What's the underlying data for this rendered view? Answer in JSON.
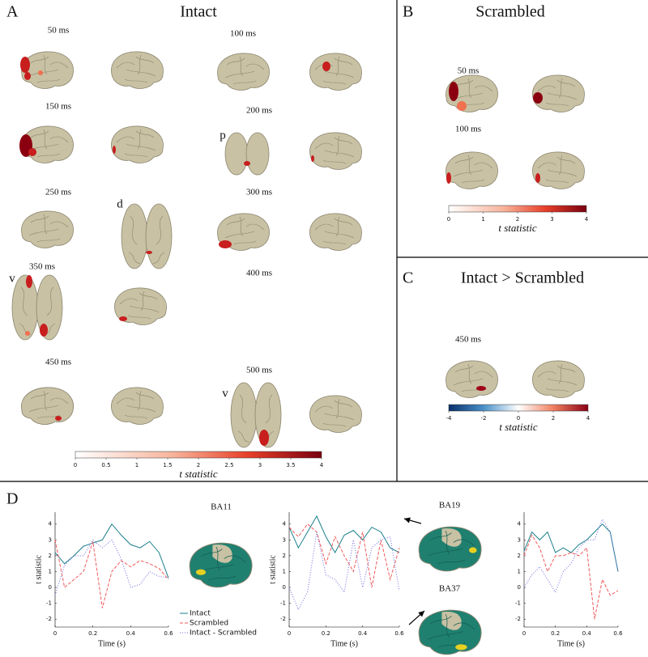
{
  "panels": {
    "A": {
      "letter": "A",
      "title": "Intact",
      "times": [
        "50 ms",
        "100 ms",
        "150 ms",
        "200 ms",
        "250 ms",
        "300 ms",
        "350 ms",
        "400 ms",
        "450 ms",
        "500 ms"
      ],
      "views": [
        "p",
        "d",
        "v",
        "v"
      ],
      "colorbar": {
        "label": "t statistic",
        "lim": [
          0,
          4
        ],
        "ticks": [
          0,
          0.5,
          1,
          1.5,
          2,
          2.5,
          3,
          3.5,
          4
        ]
      }
    },
    "B": {
      "letter": "B",
      "title": "Scrambled",
      "times": [
        "50 ms",
        "100 ms"
      ],
      "colorbar": {
        "label": "t statistic",
        "lim": [
          0,
          4
        ],
        "ticks": [
          0,
          1,
          2,
          3,
          4
        ]
      }
    },
    "C": {
      "letter": "C",
      "title": "Intact > Scrambled",
      "times": [
        "450 ms"
      ],
      "colorbar": {
        "label": "t statistic",
        "lim": [
          -4,
          4
        ],
        "ticks": [
          -4,
          -2,
          0,
          2,
          4
        ]
      }
    },
    "D": {
      "letter": "D",
      "regions": [
        "BA11",
        "BA19",
        "BA37"
      ]
    }
  },
  "chart_data": [
    {
      "type": "line",
      "xlabel": "Time (s)",
      "ylabel": "t statistic",
      "x": [
        0,
        0.05,
        0.1,
        0.15,
        0.2,
        0.25,
        0.3,
        0.35,
        0.4,
        0.45,
        0.5,
        0.55,
        0.6
      ],
      "xlim": [
        0,
        0.6
      ],
      "ylim": [
        -2.5,
        4.75
      ],
      "xticks": [
        0,
        0.2,
        0.4,
        0.6
      ],
      "yticks": [
        -2,
        -1,
        0,
        1,
        2,
        3,
        4
      ],
      "series": [
        {
          "name": "Intact",
          "color": "#1a7f8c",
          "dash": "none",
          "values": [
            2.2,
            1.5,
            2.0,
            2.6,
            2.8,
            3.0,
            4.0,
            3.3,
            2.7,
            2.5,
            2.9,
            2.2,
            0.6
          ]
        },
        {
          "name": "Scrambled",
          "color": "#f05a5a",
          "dash": "4 2",
          "values": [
            3.0,
            0.0,
            0.5,
            1.0,
            2.9,
            -1.3,
            1.0,
            1.7,
            1.3,
            1.7,
            1.5,
            1.2,
            0.5
          ]
        },
        {
          "name": "Intact - Scrambled",
          "color": "#6a6ae0",
          "dash": "1 2",
          "values": [
            -0.5,
            1.4,
            2.0,
            2.0,
            3.0,
            2.5,
            3.0,
            1.8,
            0.0,
            0.2,
            1.0,
            0.7,
            0.6
          ]
        }
      ]
    },
    {
      "type": "line",
      "xlabel": "Time (s)",
      "ylabel": "t statistic",
      "x": [
        0,
        0.05,
        0.1,
        0.15,
        0.2,
        0.25,
        0.3,
        0.35,
        0.4,
        0.45,
        0.5,
        0.55,
        0.6
      ],
      "xlim": [
        0,
        0.6
      ],
      "ylim": [
        -2.5,
        4.75
      ],
      "xticks": [
        0,
        0.2,
        0.4,
        0.6
      ],
      "yticks": [
        -2,
        -1,
        0,
        1,
        2,
        3,
        4
      ],
      "series": [
        {
          "color": "#1a7f8c",
          "dash": "none",
          "values": [
            3.8,
            2.5,
            3.5,
            4.5,
            3.2,
            2.2,
            3.3,
            3.6,
            3.0,
            3.8,
            3.5,
            2.5,
            2.2
          ]
        },
        {
          "color": "#f05a5a",
          "dash": "4 2",
          "values": [
            3.8,
            3.2,
            4.0,
            3.5,
            1.5,
            3.2,
            2.0,
            1.0,
            3.5,
            0.0,
            3.0,
            0.5,
            2.5
          ]
        },
        {
          "color": "#6a6ae0",
          "dash": "1 2",
          "values": [
            0.0,
            -1.4,
            -0.3,
            3.5,
            0.8,
            0.5,
            -0.3,
            3.0,
            0.0,
            2.5,
            3.0,
            3.2,
            -0.2
          ]
        }
      ]
    },
    {
      "type": "line",
      "xlabel": "Time (s)",
      "x": [
        0,
        0.05,
        0.1,
        0.15,
        0.2,
        0.25,
        0.3,
        0.35,
        0.4,
        0.45,
        0.5,
        0.55,
        0.6
      ],
      "xlim": [
        0,
        0.6
      ],
      "ylim": [
        -2.5,
        4.75
      ],
      "xticks": [
        0,
        0.2,
        0.4,
        0.6
      ],
      "yticks": [
        -2,
        -1,
        0,
        1,
        2,
        3,
        4
      ],
      "series": [
        {
          "color": "#1a7f8c",
          "dash": "none",
          "values": [
            2.3,
            3.5,
            3.0,
            3.5,
            2.2,
            2.5,
            2.2,
            2.7,
            3.0,
            3.5,
            4.0,
            3.5,
            1.0
          ]
        },
        {
          "color": "#f05a5a",
          "dash": "4 2",
          "values": [
            2.0,
            3.3,
            2.5,
            1.0,
            2.0,
            2.0,
            2.2,
            2.0,
            2.5,
            -2.0,
            0.5,
            -0.5,
            -0.2
          ]
        },
        {
          "color": "#6a6ae0",
          "dash": "1 2",
          "values": [
            0.0,
            0.8,
            1.3,
            0.5,
            -0.3,
            1.0,
            1.5,
            2.5,
            3.0,
            3.0,
            4.3,
            3.5,
            1.0
          ]
        }
      ]
    }
  ]
}
